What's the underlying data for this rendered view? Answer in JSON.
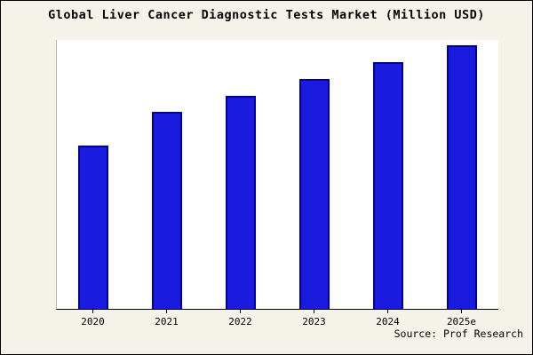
{
  "title": "Global Liver Cancer Diagnostic Tests Market (Million USD)",
  "source": "Source: Prof Research",
  "colors": {
    "bar_fill": "#1b1be0",
    "bar_border": "#00009a",
    "frame_background": "#f5f2e9",
    "plot_background": "#ffffff"
  },
  "chart_data": {
    "type": "bar",
    "title": "Global Liver Cancer Diagnostic Tests Market (Million USD)",
    "categories": [
      "2020",
      "2021",
      "2022",
      "2023",
      "2024",
      "2025e"
    ],
    "values": [
      185,
      223,
      242,
      261,
      280,
      299
    ],
    "xlabel": "",
    "ylabel": "",
    "ylim": [
      0,
      306
    ],
    "grid": false,
    "legend": "none",
    "y_axis_labels_visible": false,
    "annotation": "Source: Prof Research"
  }
}
